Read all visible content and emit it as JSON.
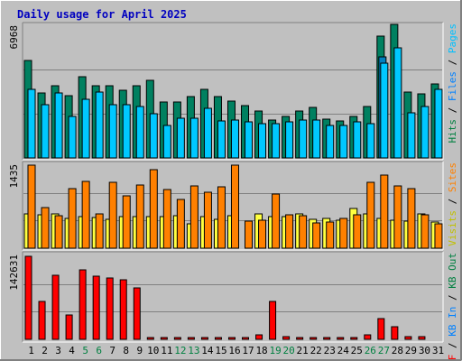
{
  "chart_data": {
    "type": "bar",
    "title": "Daily usage for April 2025",
    "days": [
      "1",
      "2",
      "3",
      "4",
      "5",
      "6",
      "7",
      "8",
      "9",
      "10",
      "11",
      "12",
      "13",
      "14",
      "15",
      "16",
      "17",
      "18",
      "19",
      "20",
      "21",
      "22",
      "23",
      "24",
      "25",
      "26",
      "27",
      "28",
      "29",
      "30",
      "31"
    ],
    "weekend_days": [
      "5",
      "6",
      "12",
      "13",
      "19",
      "20",
      "26",
      "27"
    ],
    "panels": [
      {
        "id": "hits",
        "ymax_label": "6968",
        "ymax": 6968,
        "legend": [
          {
            "text": "Hits",
            "color": "#008040"
          },
          {
            "text": " / ",
            "color": "#000000"
          },
          {
            "text": "Files",
            "color": "#0080ff"
          },
          {
            "text": " / ",
            "color": "#000000"
          },
          {
            "text": "Pages",
            "color": "#00c0ff"
          }
        ],
        "series": [
          {
            "name": "Hits",
            "color": "#008060",
            "values": [
              5100,
              3400,
              3800,
              3250,
              4250,
              3800,
              3800,
              3550,
              3800,
              4100,
              2950,
              2950,
              3200,
              3600,
              3200,
              3000,
              2750,
              2450,
              2000,
              2200,
              2450,
              2650,
              2050,
              1950,
              2200,
              2700,
              6400,
              7000,
              3450,
              3350,
              3900
            ]
          },
          {
            "name": "Files",
            "color": "#0080c0",
            "values": [
              0,
              0,
              0,
              0,
              0,
              0,
              0,
              0,
              0,
              0,
              0,
              0,
              0,
              0,
              0,
              0,
              0,
              0,
              0,
              0,
              0,
              0,
              0,
              0,
              0,
              0,
              5300,
              0,
              0,
              0,
              0
            ]
          },
          {
            "name": "Pages",
            "color": "#00c8ff",
            "values": [
              3600,
              2800,
              3400,
              2200,
              3100,
              3450,
              2800,
              2800,
              2700,
              2300,
              1700,
              2100,
              2100,
              2600,
              1950,
              2000,
              1900,
              1800,
              1800,
              1900,
              2000,
              2000,
              1700,
              1700,
              1900,
              1800,
              5000,
              5800,
              2350,
              2700,
              3600
            ]
          }
        ]
      },
      {
        "id": "sites",
        "ymax_label": "1435",
        "ymax": 1435,
        "legend": [
          {
            "text": "Visits",
            "color": "#c0c000"
          },
          {
            "text": " / ",
            "color": "#000000"
          },
          {
            "text": "Sites",
            "color": "#ff8000"
          }
        ],
        "series": [
          {
            "name": "Visits",
            "color": "#ffff40",
            "values": [
              590,
              570,
              600,
              520,
              550,
              530,
              500,
              540,
              540,
              540,
              540,
              560,
              420,
              550,
              500,
              560,
              0,
              590,
              540,
              550,
              590,
              500,
              520,
              480,
              690,
              590,
              510,
              490,
              470,
              600,
              450
            ]
          },
          {
            "name": "Sites",
            "color": "#ff8000",
            "values": [
              1435,
              700,
              560,
              1030,
              1160,
              600,
              1140,
              900,
              1090,
              1360,
              1020,
              840,
              1080,
              960,
              1060,
              1435,
              470,
              480,
              930,
              570,
              560,
              440,
              450,
              510,
              580,
              1140,
              1260,
              1070,
              1030,
              580,
              420
            ]
          }
        ]
      },
      {
        "id": "kbytes",
        "ymax_label": "142631",
        "ymax": 142631,
        "legend": [
          {
            "text": "KB F",
            "color": "#ff0000"
          },
          {
            "text": " / ",
            "color": "#000000"
          },
          {
            "text": "KB In",
            "color": "#0080ff"
          },
          {
            "text": " / ",
            "color": "#000000"
          },
          {
            "text": "KB Out",
            "color": "#008040"
          }
        ],
        "series": [
          {
            "name": "KB F",
            "color": "#ff0000",
            "values": [
              142631,
              65000,
              110000,
              42000,
              120000,
              108000,
              105000,
              103000,
              88000,
              3000,
              3000,
              3500,
              3500,
              3500,
              3500,
              3500,
              3500,
              8500,
              65000,
              4000,
              3500,
              3500,
              3500,
              3500,
              3500,
              7000,
              35000,
              22000,
              4000,
              4000,
              0
            ]
          }
        ]
      }
    ]
  }
}
